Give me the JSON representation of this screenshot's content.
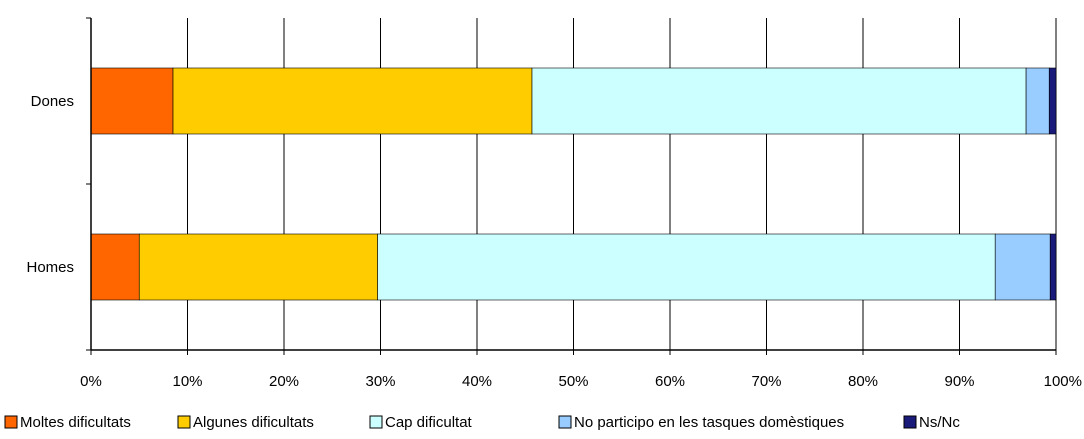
{
  "chart_data": {
    "type": "bar",
    "orientation": "horizontal",
    "stacked": true,
    "categories": [
      "Dones",
      "Homes"
    ],
    "series": [
      {
        "name": "Moltes dificultats",
        "color": "#FF6600",
        "values": [
          8.5,
          5.0
        ]
      },
      {
        "name": "Algunes dificultats",
        "color": "#FFCC00",
        "values": [
          37.2,
          24.7
        ]
      },
      {
        "name": "Cap dificultat",
        "color": "#CCFFFF",
        "values": [
          51.2,
          64.0
        ]
      },
      {
        "name": "No participo en les tasques domèstiques",
        "color": "#99CCFF",
        "values": [
          2.4,
          5.7
        ]
      },
      {
        "name": "Ns/Nc",
        "color": "#1A1A7A",
        "values": [
          0.7,
          0.6
        ]
      }
    ],
    "xlim": [
      0,
      100
    ],
    "xticks": [
      "0%",
      "10%",
      "20%",
      "30%",
      "40%",
      "50%",
      "60%",
      "70%",
      "80%",
      "90%",
      "100%"
    ],
    "grid": true,
    "legend": "bottom"
  }
}
